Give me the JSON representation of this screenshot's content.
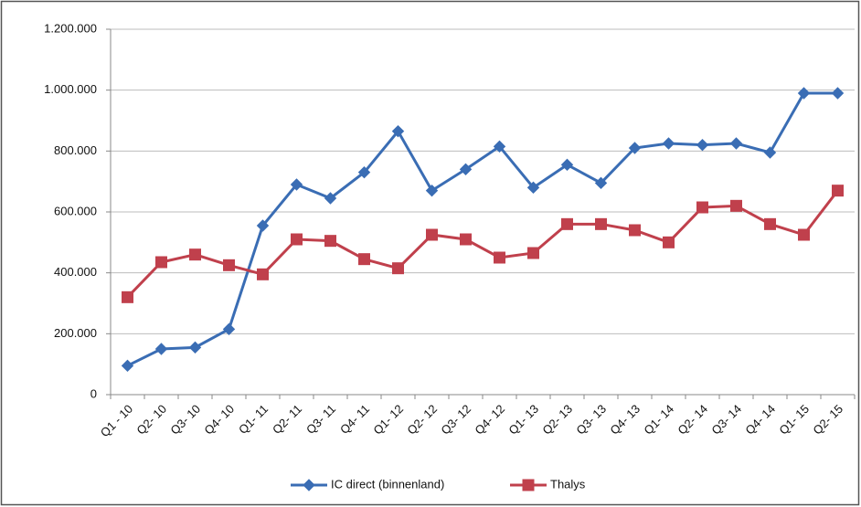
{
  "chart_data": {
    "type": "line",
    "categories": [
      "Q1 - 10",
      "Q2- 10",
      "Q3- 10",
      "Q4- 10",
      "Q1- 11",
      "Q2- 11",
      "Q3- 11",
      "Q4- 11",
      "Q1- 12",
      "Q2- 12",
      "Q3- 12",
      "Q4- 12",
      "Q1- 13",
      "Q2- 13",
      "Q3- 13",
      "Q4- 13",
      "Q1- 14",
      "Q2- 14",
      "Q3- 14",
      "Q4- 14",
      "Q1- 15",
      "Q2- 15"
    ],
    "series": [
      {
        "name": "IC direct (binnenland)",
        "color": "#3a6db4",
        "marker": "diamond",
        "values": [
          95000,
          150000,
          155000,
          215000,
          555000,
          690000,
          645000,
          730000,
          865000,
          670000,
          740000,
          815000,
          680000,
          755000,
          695000,
          810000,
          825000,
          820000,
          825000,
          795000,
          990000,
          990000
        ]
      },
      {
        "name": "Thalys",
        "color": "#c0404c",
        "marker": "square",
        "values": [
          320000,
          435000,
          460000,
          425000,
          395000,
          510000,
          505000,
          445000,
          415000,
          525000,
          510000,
          450000,
          465000,
          560000,
          560000,
          540000,
          500000,
          615000,
          620000,
          560000,
          525000,
          670000
        ]
      }
    ],
    "ylim": [
      0,
      1200000
    ],
    "yticks": [
      0,
      {
        "value": 200000,
        "label": "200.000"
      },
      {
        "value": 400000,
        "label": "400.000"
      },
      {
        "value": 600000,
        "label": "600.000"
      },
      {
        "value": 800000,
        "label": "800.000"
      },
      {
        "value": 1000000,
        "label": "1.000.000"
      },
      {
        "value": 1200000,
        "label": "1.200.000"
      }
    ],
    "grid": true,
    "legend": "bottom"
  }
}
